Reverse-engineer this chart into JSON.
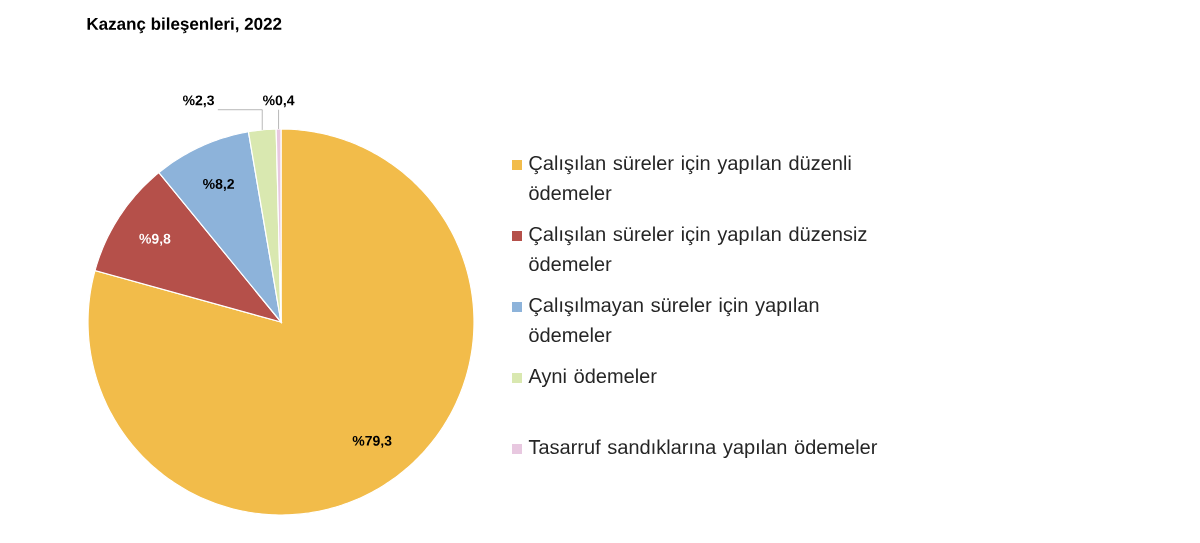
{
  "chart_data": {
    "type": "pie",
    "title": "Kazanç bileşenleri, 2022",
    "categories": [
      "Çalışılan süreler için yapılan düzenli ödemeler",
      "Çalışılan süreler için yapılan düzensiz ödemeler",
      "Çalışılmayan süreler için yapılan ödemeler",
      "Ayni ödemeler",
      "Tasarruf sandıklarına yapılan ödemeler"
    ],
    "values": [
      79.3,
      9.8,
      8.2,
      2.3,
      0.4
    ],
    "value_labels": [
      "%79,3",
      "%9,8",
      "%8,2",
      "%2,3",
      "%0,4"
    ],
    "colors": [
      "#f2bc4a",
      "#b5504a",
      "#8db3da",
      "#d9e8b0",
      "#e8c8e0"
    ],
    "legend": "right"
  }
}
